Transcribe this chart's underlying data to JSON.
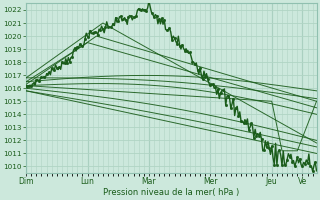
{
  "bg_color": "#cce8dc",
  "grid_color": "#b0d4c4",
  "line_color": "#1a5c1a",
  "marker_color": "#1a5c1a",
  "xlabel": "Pression niveau de la mer( hPa )",
  "xlabel_color": "#1a5c1a",
  "tick_color": "#1a5c1a",
  "ylim": [
    1009.5,
    1022.5
  ],
  "yticks": [
    1010,
    1011,
    1012,
    1013,
    1014,
    1015,
    1016,
    1017,
    1018,
    1019,
    1020,
    1021,
    1022
  ],
  "xtick_labels": [
    "Dim",
    "Lun",
    "Mar",
    "Mer",
    "Jeu",
    "Ve"
  ],
  "xtick_pos": [
    0,
    48,
    96,
    144,
    192,
    216
  ],
  "total_points": 228,
  "n_days": 5.5
}
